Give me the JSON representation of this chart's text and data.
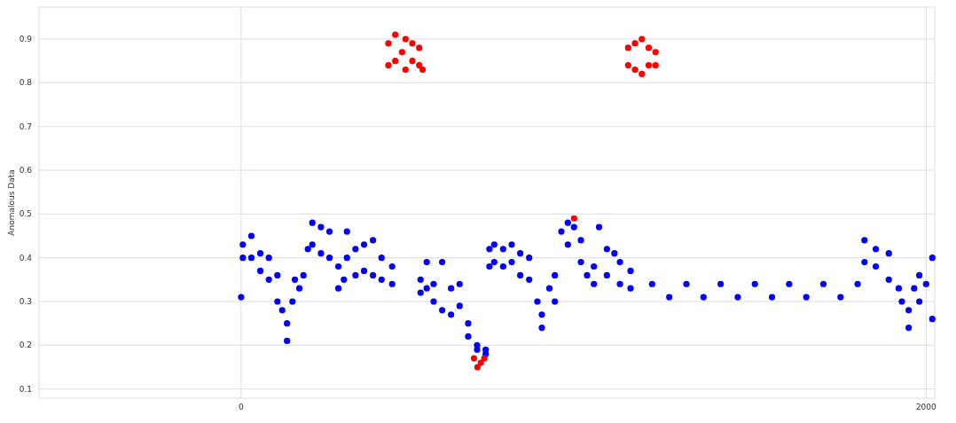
{
  "chart_data": {
    "type": "scatter",
    "ylabel": "Anomalous Data",
    "xlim": [
      -590,
      2025
    ],
    "ylim": [
      0.079,
      0.973
    ],
    "xticks": [
      0,
      2000
    ],
    "yticks": [
      0.1,
      0.2,
      0.3,
      0.4,
      0.5,
      0.6,
      0.7,
      0.8,
      0.9
    ],
    "grid": true,
    "marker": "circle",
    "series": [
      {
        "color": "#0000ff",
        "x": [
          0,
          5,
          5,
          30,
          30,
          56,
          56,
          81,
          81,
          106,
          106,
          120,
          134,
          134,
          150,
          157,
          170,
          182,
          195,
          208,
          208,
          233,
          233,
          258,
          258,
          284,
          284,
          300,
          309,
          309,
          334,
          334,
          359,
          359,
          385,
          385,
          410,
          410,
          441,
          441,
          524,
          524,
          542,
          542,
          562,
          562,
          587,
          587,
          613,
          613,
          638,
          638,
          663,
          663,
          689,
          689,
          714,
          714,
          725,
          725,
          739,
          739,
          765,
          765,
          790,
          790,
          815,
          815,
          841,
          841,
          865,
          878,
          878,
          900,
          916,
          916,
          935,
          954,
          954,
          972,
          992,
          992,
          1010,
          1030,
          1030,
          1045,
          1068,
          1068,
          1090,
          1106,
          1106,
          1137,
          1137,
          1200,
          1250,
          1300,
          1350,
          1400,
          1450,
          1500,
          1550,
          1600,
          1650,
          1700,
          1750,
          1800,
          1820,
          1820,
          1853,
          1853,
          1891,
          1891,
          1920,
          1929,
          1949,
          1949,
          1965,
          1980,
          1980,
          2000,
          2018,
          2018
        ],
        "values": [
          0.31,
          0.43,
          0.4,
          0.45,
          0.4,
          0.41,
          0.37,
          0.4,
          0.35,
          0.36,
          0.3,
          0.28,
          0.21,
          0.25,
          0.3,
          0.35,
          0.33,
          0.36,
          0.42,
          0.48,
          0.43,
          0.47,
          0.41,
          0.46,
          0.4,
          0.38,
          0.33,
          0.35,
          0.46,
          0.4,
          0.42,
          0.36,
          0.43,
          0.37,
          0.44,
          0.36,
          0.4,
          0.35,
          0.38,
          0.34,
          0.35,
          0.32,
          0.39,
          0.33,
          0.34,
          0.3,
          0.39,
          0.28,
          0.33,
          0.27,
          0.34,
          0.29,
          0.25,
          0.22,
          0.2,
          0.19,
          0.19,
          0.18,
          0.42,
          0.38,
          0.43,
          0.39,
          0.42,
          0.38,
          0.43,
          0.39,
          0.41,
          0.36,
          0.4,
          0.35,
          0.3,
          0.24,
          0.27,
          0.33,
          0.36,
          0.3,
          0.46,
          0.48,
          0.43,
          0.47,
          0.44,
          0.39,
          0.36,
          0.38,
          0.34,
          0.47,
          0.42,
          0.36,
          0.41,
          0.39,
          0.34,
          0.37,
          0.33,
          0.34,
          0.31,
          0.34,
          0.31,
          0.34,
          0.31,
          0.34,
          0.31,
          0.34,
          0.31,
          0.34,
          0.31,
          0.34,
          0.44,
          0.39,
          0.42,
          0.38,
          0.41,
          0.35,
          0.33,
          0.3,
          0.24,
          0.28,
          0.33,
          0.36,
          0.3,
          0.34,
          0.4,
          0.26
        ]
      },
      {
        "color": "#ff0000",
        "x": [
          430,
          430,
          450,
          450,
          470,
          480,
          480,
          500,
          500,
          520,
          520,
          530,
          680,
          690,
          700,
          710,
          972,
          1130,
          1130,
          1150,
          1150,
          1170,
          1170,
          1190,
          1190,
          1210,
          1210
        ],
        "values": [
          0.89,
          0.84,
          0.91,
          0.85,
          0.87,
          0.9,
          0.83,
          0.89,
          0.85,
          0.88,
          0.84,
          0.83,
          0.17,
          0.15,
          0.16,
          0.17,
          0.49,
          0.88,
          0.84,
          0.89,
          0.83,
          0.9,
          0.82,
          0.88,
          0.84,
          0.87,
          0.84
        ]
      }
    ]
  }
}
